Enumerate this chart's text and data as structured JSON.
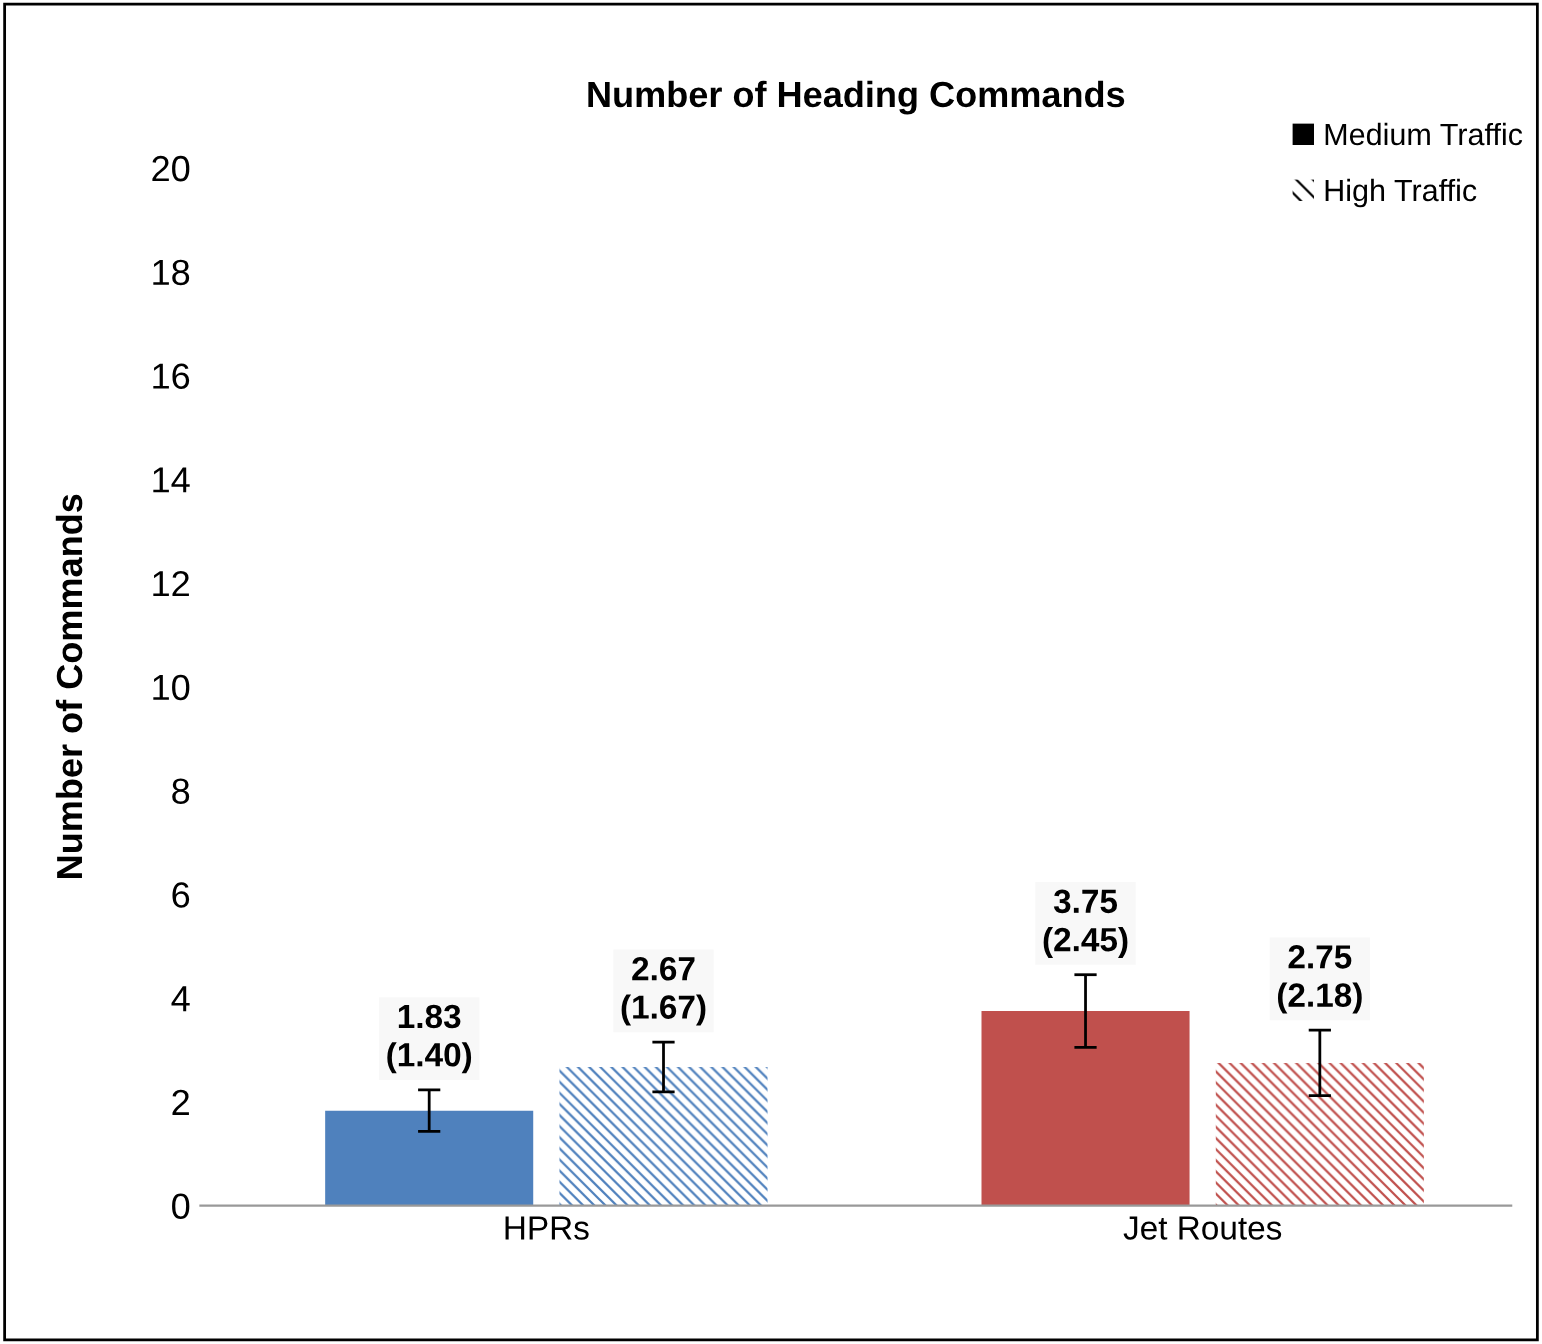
{
  "chart_data": {
    "type": "bar",
    "title": "Number of Heading Commands",
    "ylabel": "Number of Commands",
    "categories": [
      "HPRs",
      "Jet Routes"
    ],
    "series": [
      {
        "name": "Medium Traffic",
        "color": "#000000",
        "colors": [
          "#4f81bd",
          "#c0504d"
        ],
        "values": [
          1.83,
          3.75
        ],
        "errors": [
          0.4,
          0.7
        ],
        "value_labels": [
          "1.83\n(1.40)",
          "3.75\n(2.45)"
        ]
      },
      {
        "name": "High Traffic",
        "color": "#000000",
        "colors": [
          "#4f81bd",
          "#c0504d"
        ],
        "values": [
          2.67,
          2.75
        ],
        "errors": [
          0.48,
          0.63
        ],
        "value_labels": [
          "2.67\n(1.67)",
          "2.75\n(2.18)"
        ]
      }
    ],
    "ylim": [
      0,
      20
    ],
    "yticks": [
      0,
      2,
      4,
      6,
      8,
      10,
      12,
      14,
      16,
      18,
      20
    ],
    "grid": false,
    "legend": "top right"
  }
}
